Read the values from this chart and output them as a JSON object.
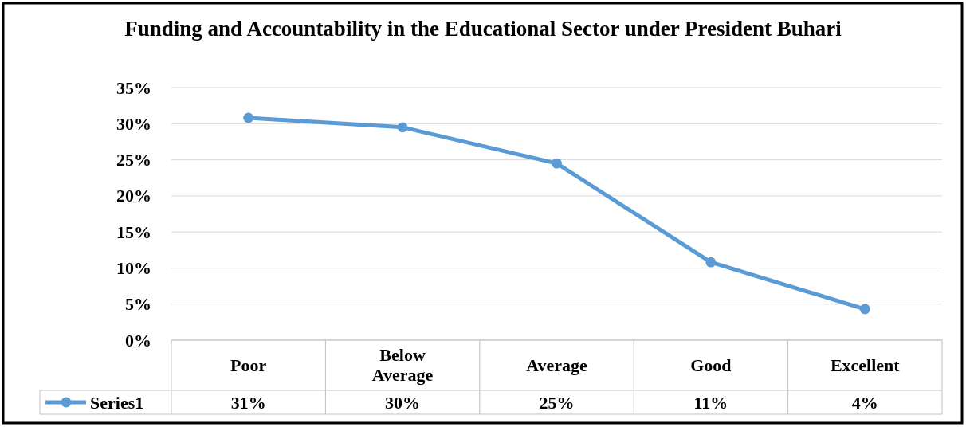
{
  "chart_data": {
    "type": "line",
    "title": "Funding and Accountability in the Educational Sector under President Buhari",
    "categories": [
      "Poor",
      "Below Average",
      "Average",
      "Good",
      "Excellent"
    ],
    "series": [
      {
        "name": "Series1",
        "color": "#5b9bd5",
        "values": [
          30.8,
          29.5,
          24.5,
          10.8,
          4.3
        ],
        "value_labels": [
          "31%",
          "30%",
          "25%",
          "11%",
          "4%"
        ]
      }
    ],
    "ylim": [
      0,
      35
    ],
    "yticks": [
      {
        "value": 0,
        "label": "0%"
      },
      {
        "value": 5,
        "label": "5%"
      },
      {
        "value": 10,
        "label": "10%"
      },
      {
        "value": 15,
        "label": "15%"
      },
      {
        "value": 20,
        "label": "20%"
      },
      {
        "value": 25,
        "label": "25%"
      },
      {
        "value": 30,
        "label": "30%"
      },
      {
        "value": 35,
        "label": "35%"
      }
    ],
    "grid": "y",
    "marker": "circle",
    "line_style": "solid",
    "legend": "bottom left"
  }
}
